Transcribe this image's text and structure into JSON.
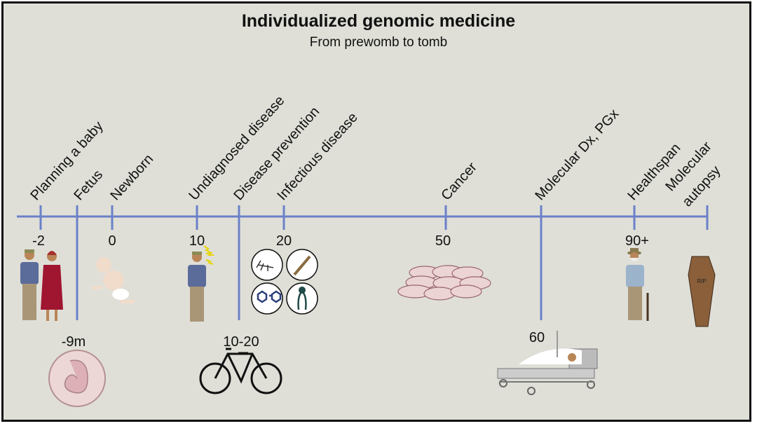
{
  "title": "Individualized genomic medicine",
  "subtitle": "From prewomb to tomb",
  "colors": {
    "axis": "#6b80c8",
    "background": "#dfdfd8"
  },
  "stages": [
    {
      "label": "Planning a baby",
      "age": "-2",
      "icon": "couple-icon"
    },
    {
      "label": "Fetus",
      "age": "-9m",
      "icon": "embryo-icon"
    },
    {
      "label": "Newborn",
      "age": "0",
      "icon": "baby-icon"
    },
    {
      "label": "Undiagnosed disease",
      "age": "10",
      "icon": "sick-child-icon"
    },
    {
      "label": "Disease prevention",
      "age": "10-20",
      "icon": "bicycle-icon"
    },
    {
      "label": "Infectious disease",
      "age": "20",
      "icon": "infection-icons"
    },
    {
      "label": "Cancer",
      "age": "50",
      "icon": "cancer-cells-icon"
    },
    {
      "label": "Molecular Dx, PGx",
      "age": "60",
      "icon": "hospital-bed-icon"
    },
    {
      "label": "Healthspan",
      "age": "90+",
      "icon": "elderly-man-icon"
    },
    {
      "label_line1": "Molecular",
      "label_line2": "autopsy",
      "icon": "coffin-icon",
      "icon_text": "RIP"
    }
  ]
}
